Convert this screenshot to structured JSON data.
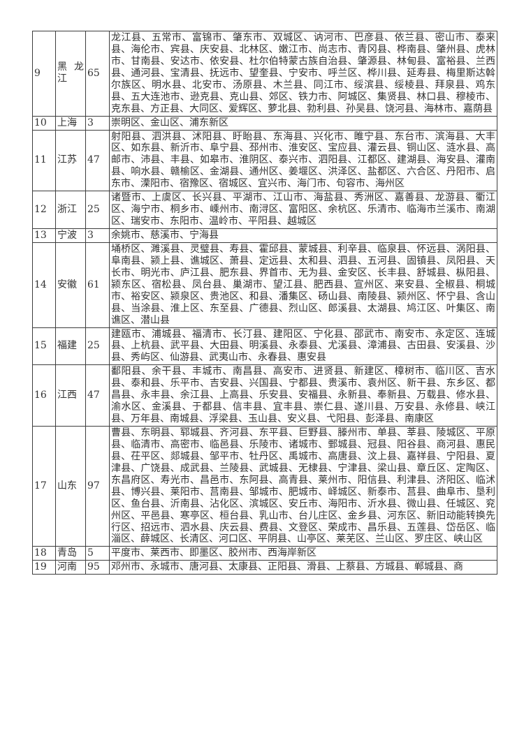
{
  "table": {
    "rows": [
      {
        "no": "9",
        "province": "黑龙江",
        "count": "65",
        "counties": "龙江县、五常市、富锦市、肇东市、双城区、讷河市、巴彦县、依兰县、密山市、泰来县、海伦市、宾县、庆安县、北林区、嫩江市、尚志市、青冈县、桦南县、肇州县、虎林市、甘南县、安达市、依安县、杜尔伯特蒙古族自治县、肇源县、林甸县、富裕县、兰西县、通河县、宝清县、抚远市、望奎县、宁安市、呼兰区、桦川县、延寿县、梅里斯达斡尔族区、明水县、北安市、汤原县、木兰县、同江市、绥滨县、绥棱县、拜泉县、鸡东县、五大连池市、逊克县、克山县、郊区、铁力市、阿城区、集贤县、林口县、穆棱市、克东县、方正县、大同区、爱辉区、萝北县、勃利县、孙吴县、饶河县、海林市、嘉荫县"
      },
      {
        "no": "10",
        "province": "上海",
        "count": "3",
        "counties": "崇明区、金山区、浦东新区"
      },
      {
        "no": "11",
        "province": "江苏",
        "count": "47",
        "counties": "射阳县、泗洪县、沭阳县、盱眙县、东海县、兴化市、睢宁县、东台市、滨海县、大丰区、如东县、新沂市、阜宁县、邳州市、淮安区、宝应县、灌云县、铜山区、涟水县、高邮市、沛县、丰县、如皋市、淮阴区、泰兴市、泗阳县、江都区、建湖县、海安县、灌南县、响水县、赣榆区、金湖县、通州区、姜堰区、洪泽区、盐都区、六合区、丹阳市、启东市、溧阳市、宿豫区、宿城区、宜兴市、海门市、句容市、海州区"
      },
      {
        "no": "12",
        "province": "浙江",
        "count": "25",
        "counties": "诸暨市、上虞区、长兴县、平湖市、江山市、海盐县、秀洲区、嘉善县、龙游县、衢江区、海宁市、桐乡市、嵊州市、南浔区、富阳区、余杭区、乐清市、临海市兰溪市、南湖区、瑞安市、东阳市、温岭市、平阳县、越城区"
      },
      {
        "no": "13",
        "province": "宁波",
        "count": "3",
        "counties": "余姚市、慈溪市、宁海县"
      },
      {
        "no": "14",
        "province": "安徽",
        "count": "61",
        "counties": "埇桥区、濉溪县、灵璧县、寿县、霍邱县、蒙城县、利辛县、临泉县、怀远县、涡阳县、阜南县、颍上县、谯城区、萧县、定远县、太和县、泗县、五河县、固镇县、凤阳县、天长市、明光市、庐江县、肥东县、界首市、无为县、金安区、长丰县、舒城县、枞阳县、颍东区、宿松县、凤台县、巢湖市、望江县、肥西县、宣州区、来安县、全椒县、桐城市、裕安区、颍泉区、贵池区、和县、潘集区、砀山县、南陵县、颍州区、怀宁县、含山县、当涂县、淮上区、东至县、广德县、烈山区、郎溪县、太湖县、鸠江区、叶集区、南谯区、潜山县"
      },
      {
        "no": "15",
        "province": "福建",
        "count": "25",
        "counties": "建瓯市、浦城县、福清市、长汀县、建阳区、宁化县、邵武市、南安市、永定区、连城县、上杭县、武平县、大田县、明溪县、永泰县、尤溪县、漳浦县、古田县、安溪县、沙县、秀屿区、仙游县、武夷山市、永春县、惠安县"
      },
      {
        "no": "16",
        "province": "江西",
        "count": "47",
        "counties": "鄱阳县、余干县、丰城市、南昌县、高安市、进贤县、新建区、樟树市、临川区、吉水县、泰和县、乐平市、吉安县、兴国县、宁都县、贵溪市、袁州区、新干县、东乡区、都昌县、永丰县、余江县、上高县、乐安县、安福县、永新县、奉新县、万载县、修水县、渝水区、金溪县、于都县、信丰县、宜丰县、崇仁县、遂川县、万安县、永修县、峡江县、万年县、南城县、浮梁县、玉山县、安义县、弋阳县、彭泽县、南康区"
      },
      {
        "no": "17",
        "province": "山东",
        "count": "97",
        "counties": "曹县、东明县、郓城县、齐河县、东平县、巨野县、滕州市、单县、莘县、陵城区、平原县、临清市、高密市、临邑县、乐陵市、诸城市、鄄城县、冠县、阳谷县、商河县、惠民县、茌平区、郯城县、邹平市、牡丹区、禹城市、高唐县、汶上县、嘉祥县、宁阳县、夏津县、广饶县、成武县、兰陵县、武城县、无棣县、宁津县、梁山县、章丘区、定陶区、东昌府区、寿光市、昌邑市、东阿县、高青县、莱州市、阳信县、利津县、济阳区、临沭县、博兴县、莱阳市、莒南县、邹城市、肥城市、峄城区、新泰市、莒县、曲阜市、垦利区、鱼台县、沂南县、沾化区、滨城区、安丘市、海阳市、沂水县、微山县、任城区、兖州区、平邑县、寒亭区、桓台县、乳山市、台儿庄区、金乡县、河东区、新旧动能转换先行区、招远市、泗水县、庆云县、费县、文登区、荣成市、昌乐县、五莲县、岱岳区、临淄区、薛城区、长清区、河口区、平阴县、山亭区、莱芜区、兰山区、罗庄区、峡山区"
      },
      {
        "no": "18",
        "province": "青岛",
        "count": "5",
        "counties": "平度市、莱西市、即墨区、胶州市、西海岸新区"
      },
      {
        "no": "19",
        "province": "河南",
        "count": "95",
        "counties": "邓州市、永城市、唐河县、太康县、正阳县、滑县、上蔡县、方城县、郸城县、商"
      }
    ]
  }
}
